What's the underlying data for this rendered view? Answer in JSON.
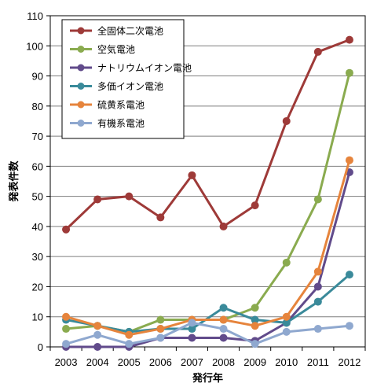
{
  "chart_data": {
    "type": "line",
    "xlabel": "発行年",
    "ylabel": "発表件数",
    "ylim": [
      0,
      110
    ],
    "yticks": [
      0,
      10,
      20,
      30,
      40,
      50,
      60,
      70,
      80,
      90,
      100,
      110
    ],
    "categories": [
      "2003",
      "2004",
      "2005",
      "2006",
      "2007",
      "2008",
      "2009",
      "2010",
      "2011",
      "2012"
    ],
    "grid": true,
    "legend_position": "top-left",
    "series": [
      {
        "name": "全固体二次電池",
        "color": "#9e3a38",
        "values": [
          39,
          49,
          50,
          43,
          57,
          40,
          47,
          75,
          98,
          102
        ]
      },
      {
        "name": "空気電池",
        "color": "#8aab4f",
        "values": [
          6,
          7,
          5,
          9,
          9,
          9,
          13,
          28,
          49,
          91
        ]
      },
      {
        "name": "ナトリウムイオン電池",
        "color": "#614b8b",
        "values": [
          0,
          0,
          0,
          3,
          3,
          3,
          2,
          8,
          20,
          58
        ]
      },
      {
        "name": "多価イオン電池",
        "color": "#3a8a9a",
        "values": [
          9,
          7,
          5,
          6,
          6,
          13,
          9,
          8,
          15,
          24
        ]
      },
      {
        "name": "硫黄系電池",
        "color": "#e6843c",
        "values": [
          10,
          7,
          4,
          6,
          9,
          9,
          7,
          10,
          25,
          62
        ]
      },
      {
        "name": "有機系電池",
        "color": "#8fa8cf",
        "values": [
          1,
          4,
          1,
          3,
          8,
          6,
          1,
          5,
          6,
          7
        ]
      }
    ]
  }
}
